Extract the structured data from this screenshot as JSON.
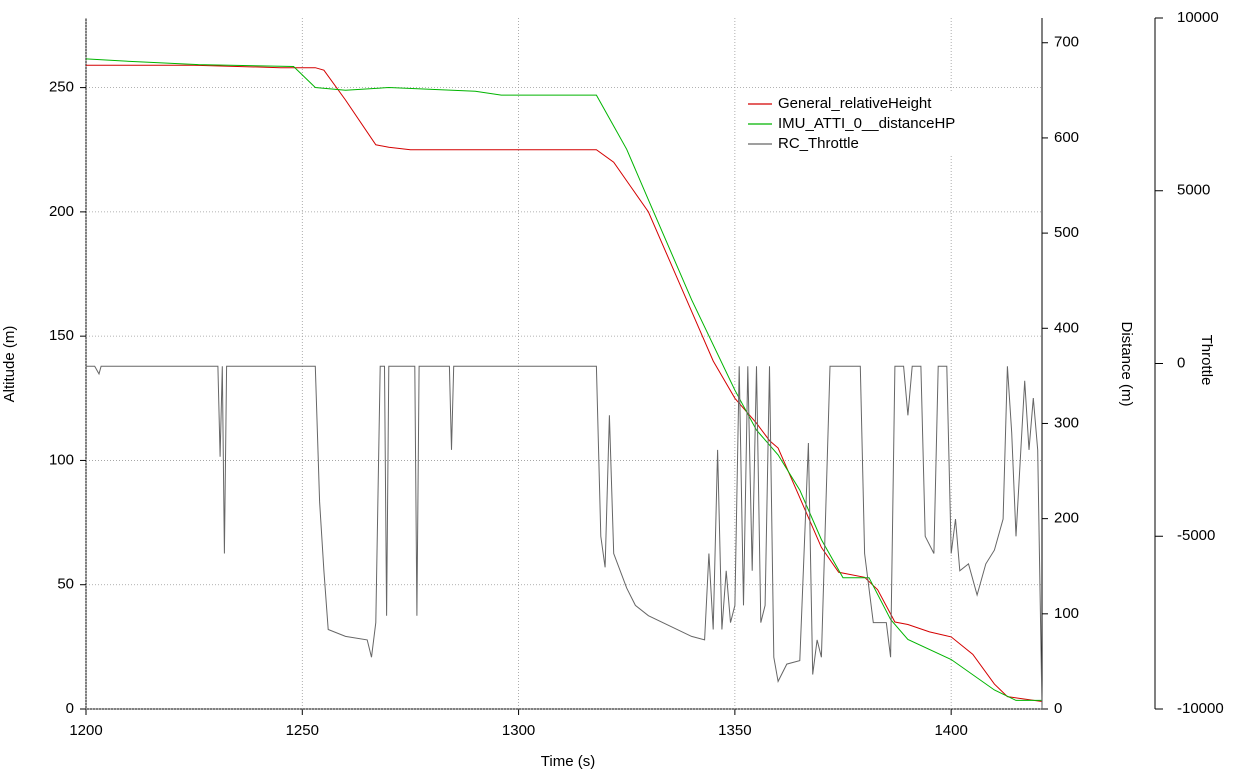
{
  "chart_data": {
    "type": "line",
    "xlabel": "Time (s)",
    "ylabel": "Altitude (m)",
    "y2label": "Distance (m)",
    "y3label": "Throttle",
    "xlim": [
      1200,
      1421
    ],
    "xticks": [
      1200,
      1250,
      1300,
      1350,
      1400
    ],
    "ylim": [
      0,
      278
    ],
    "yticks": [
      0,
      50,
      100,
      150,
      200,
      250
    ],
    "y2lim": [
      0,
      726
    ],
    "y2ticks": [
      0,
      100,
      200,
      300,
      400,
      500,
      600,
      700
    ],
    "y3lim": [
      -10000,
      10000
    ],
    "y3ticks": [
      -10000,
      -5000,
      0,
      5000,
      10000
    ],
    "grid": true,
    "series": [
      {
        "name": "General_relativeHeight",
        "color": "#d40000",
        "axis": "y",
        "x": [
          1200,
          1225,
          1245,
          1253,
          1255,
          1260,
          1267,
          1270,
          1275,
          1300,
          1318,
          1322,
          1326,
          1330,
          1335,
          1340,
          1345,
          1350,
          1355,
          1358,
          1360,
          1365,
          1370,
          1374,
          1380,
          1383,
          1387,
          1390,
          1395,
          1400,
          1405,
          1410,
          1413,
          1421
        ],
        "values": [
          259,
          259,
          258,
          258,
          257,
          245,
          227,
          226,
          225,
          225,
          225,
          220,
          210,
          200,
          180,
          160,
          140,
          125,
          115,
          108,
          105,
          85,
          65,
          55,
          53,
          48,
          35,
          34,
          31,
          29,
          22,
          10,
          5,
          3
        ]
      },
      {
        "name": "IMU_ATTI_0__distanceHP",
        "color": "#00b400",
        "axis": "y2",
        "x": [
          1200,
          1212,
          1226,
          1248,
          1253,
          1260,
          1270,
          1280,
          1290,
          1296,
          1318,
          1325,
          1330,
          1340,
          1350,
          1355,
          1360,
          1365,
          1370,
          1375,
          1381,
          1386,
          1390,
          1400,
          1410,
          1415,
          1421
        ],
        "values": [
          683,
          680,
          677,
          675,
          653,
          650,
          653,
          651,
          649,
          645,
          645,
          588,
          535,
          430,
          335,
          293,
          267,
          230,
          178,
          138,
          138,
          94,
          73,
          52,
          20,
          9,
          9
        ]
      },
      {
        "name": "RC_Throttle",
        "color": "#666666",
        "axis": "y3",
        "x": [
          1200,
          1202,
          1203,
          1203.5,
          1230.5,
          1231,
          1231.5,
          1232,
          1232.5,
          1253,
          1254,
          1255,
          1256,
          1260,
          1265,
          1266,
          1267,
          1268,
          1269,
          1269.5,
          1270,
          1276,
          1276.5,
          1277,
          1284,
          1284.5,
          1285,
          1318,
          1319,
          1320,
          1321,
          1322,
          1325,
          1327,
          1330,
          1335,
          1340,
          1343,
          1344,
          1345,
          1346,
          1347,
          1348,
          1349,
          1350,
          1351,
          1352,
          1353,
          1354,
          1355,
          1356,
          1357,
          1358,
          1359,
          1360,
          1362,
          1365,
          1367,
          1368,
          1369,
          1370,
          1372,
          1375,
          1379,
          1380,
          1382,
          1385,
          1386,
          1387,
          1389,
          1390,
          1391,
          1393,
          1394,
          1396,
          1397,
          1399,
          1400,
          1401,
          1402,
          1404,
          1406,
          1408,
          1410,
          1412,
          1413,
          1414,
          1415,
          1417,
          1418,
          1419,
          1420,
          1421
        ],
        "values": [
          -80,
          -80,
          -300,
          -80,
          -80,
          -2700,
          -80,
          -5500,
          -80,
          -80,
          -4000,
          -6000,
          -7700,
          -7900,
          -8000,
          -8500,
          -7500,
          -80,
          -80,
          -7300,
          -80,
          -80,
          -7300,
          -80,
          -80,
          -2500,
          -80,
          -80,
          -5000,
          -5900,
          -1500,
          -5500,
          -6500,
          -7000,
          -7300,
          -7600,
          -7900,
          -8000,
          -5500,
          -7700,
          -2500,
          -7700,
          -6000,
          -7500,
          -7000,
          -80,
          -7000,
          -80,
          -6000,
          -80,
          -7500,
          -7000,
          -80,
          -8500,
          -9200,
          -8700,
          -8600,
          -2300,
          -9000,
          -8000,
          -8500,
          -80,
          -80,
          -80,
          -5500,
          -7500,
          -7500,
          -8500,
          -80,
          -80,
          -1500,
          -80,
          -80,
          -5000,
          -5500,
          -80,
          -80,
          -5500,
          -4500,
          -6000,
          -5800,
          -6700,
          -5800,
          -5400,
          -4500,
          -80,
          -2000,
          -5000,
          -500,
          -2500,
          -1000,
          -2500,
          -10000
        ]
      }
    ]
  }
}
